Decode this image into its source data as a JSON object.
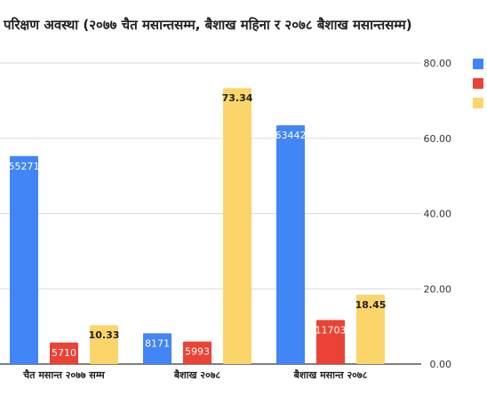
{
  "title": "परिक्षण अवस्था (२०७७ चैत मसान्तसम्म, बैशाख महिना र २०७८ बैशाख मसान्तसम्म)",
  "colors": {
    "series1": "#4285F4",
    "series2": "#EA4335",
    "series3": "#FBD56A",
    "grid": "#d9d9d9",
    "axis": "#333333"
  },
  "chart_data": {
    "type": "bar",
    "title": "परिक्षण अवस्था (२०७७ चैत मसान्तसम्म, बैशाख महिना र २०७८ बैशाख मसान्तसम्म)",
    "categories": [
      "चैत मसान्त २०७७ सम्म",
      "बैशाख २०७८",
      "बैशाख मसान्त २०७८"
    ],
    "series": [
      {
        "values": [
          55271,
          8171,
          63442
        ],
        "labels": [
          "55271",
          "8171",
          "63442"
        ],
        "axis": "left-scaled",
        "color": "#4285F4"
      },
      {
        "values": [
          5710,
          5993,
          11703
        ],
        "labels": [
          "5710",
          "5993",
          "11703"
        ],
        "axis": "left-scaled",
        "color": "#EA4335"
      },
      {
        "values": [
          10.33,
          73.34,
          18.45
        ],
        "labels": [
          "10.33",
          "73.34",
          "18.45"
        ],
        "axis": "right",
        "color": "#FBD56A"
      }
    ],
    "right_axis": {
      "ticks": [
        "0.00",
        "20.00",
        "40.00",
        "60.00",
        "80.00"
      ],
      "ylim": [
        0,
        80
      ]
    },
    "left_axis_ylim": [
      0,
      80000
    ],
    "grid": true,
    "legend_position": "right"
  }
}
